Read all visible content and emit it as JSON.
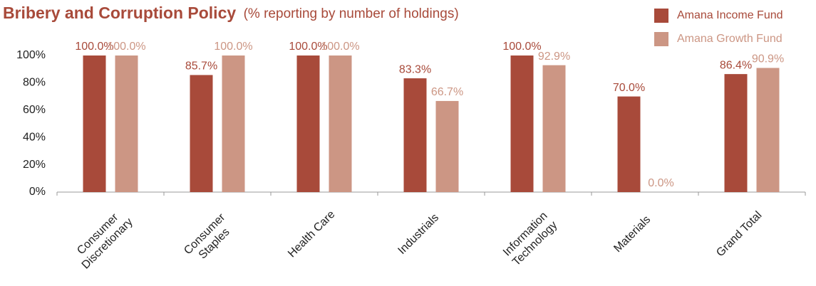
{
  "chart_data": {
    "type": "bar",
    "title": "Bribery and Corruption Policy",
    "subtitle": "(% reporting by number of holdings)",
    "categories": [
      "Consumer Discretionary",
      "Consumer Staples",
      "Health Care",
      "Industrials",
      "Information Technology",
      "Materials",
      "Grand Total"
    ],
    "series": [
      {
        "name": "Amana Income Fund",
        "color": "#a84a3a",
        "values": [
          100,
          85.7,
          100,
          83.3,
          100,
          70,
          86.4
        ],
        "value_labels": [
          "100.0%",
          "85.7%",
          "100.0%",
          "83.3%",
          "100.0%",
          "70.0%",
          "86.4%"
        ]
      },
      {
        "name": "Amana Growth Fund",
        "color": "#cc9684",
        "values": [
          100,
          100,
          100,
          66.7,
          92.9,
          0,
          90.9
        ],
        "value_labels": [
          "100.0%",
          "100.0%",
          "100.0%",
          "66.7%",
          "92.9%",
          "0.0%",
          "90.9%"
        ]
      }
    ],
    "ylim": [
      0,
      100
    ],
    "yticks": [
      {
        "value": 0,
        "label": "0%"
      },
      {
        "value": 20,
        "label": "20%"
      },
      {
        "value": 40,
        "label": "40%"
      },
      {
        "value": 60,
        "label": "60%"
      },
      {
        "value": 80,
        "label": "80%"
      },
      {
        "value": 100,
        "label": "100%"
      }
    ],
    "grid": false
  }
}
